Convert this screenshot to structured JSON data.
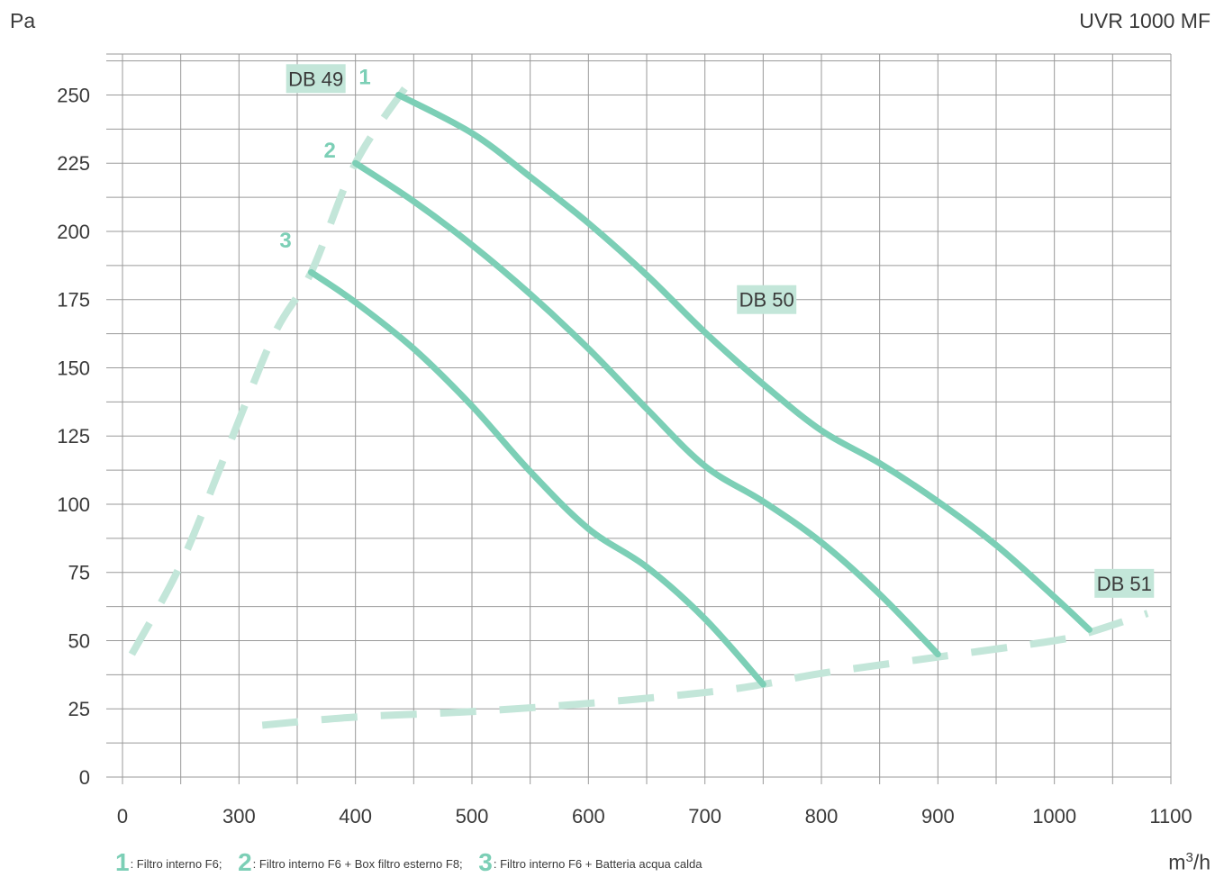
{
  "chart_data": {
    "type": "line",
    "title": "UVR 1000 MF",
    "ylabel": "Pa",
    "xlabel_unit": "m",
    "xlabel_unit_exp": "3",
    "xlabel_unit_suffix": "/h",
    "xlim": [
      200,
      1100
    ],
    "ylim": [
      0,
      265
    ],
    "x_ticks": [
      "0",
      "300",
      "400",
      "500",
      "600",
      "700",
      "800",
      "900",
      "1000",
      "1100"
    ],
    "x_tick_values": [
      200,
      300,
      400,
      500,
      600,
      700,
      800,
      900,
      1000,
      1100
    ],
    "y_ticks": [
      "0",
      "25",
      "50",
      "75",
      "100",
      "125",
      "150",
      "175",
      "200",
      "225",
      "250"
    ],
    "y_tick_values": [
      0,
      25,
      50,
      75,
      100,
      125,
      150,
      175,
      200,
      225,
      250
    ],
    "grid": true,
    "colors": {
      "curve": "#7ccfb6",
      "dashed": "#c3e6d9",
      "label_bg": "#c3e6d9",
      "grid": "#9a9a9a"
    },
    "series": [
      {
        "name": "1",
        "style": "solid",
        "x": [
          437,
          500,
          550,
          600,
          650,
          700,
          750,
          800,
          850,
          900,
          950,
          1000,
          1030
        ],
        "y": [
          250,
          236,
          220,
          203,
          184,
          163,
          144,
          127,
          115,
          101,
          85,
          66,
          54
        ]
      },
      {
        "name": "2",
        "style": "solid",
        "x": [
          400,
          450,
          500,
          550,
          600,
          650,
          700,
          750,
          800,
          850,
          900
        ],
        "y": [
          225,
          211,
          195,
          177,
          157,
          135,
          114,
          101,
          86,
          67,
          45
        ]
      },
      {
        "name": "3",
        "style": "solid",
        "x": [
          362,
          400,
          450,
          500,
          550,
          600,
          650,
          700,
          750
        ],
        "y": [
          185,
          174,
          157,
          136,
          112,
          91,
          77,
          58,
          34
        ]
      }
    ],
    "dashed_lines": [
      {
        "x": [
          208,
          250,
          290,
          330,
          362,
          400,
          445
        ],
        "y": [
          45,
          78,
          120,
          162,
          185,
          225,
          254
        ]
      },
      {
        "x": [
          320,
          400,
          500,
          600,
          700,
          750,
          800,
          900,
          1000,
          1030,
          1080
        ],
        "y": [
          19,
          22,
          24,
          27,
          31,
          34,
          38,
          44,
          50,
          53,
          60
        ]
      }
    ],
    "curve_labels": [
      {
        "text": "1",
        "x": 408,
        "y": 254
      },
      {
        "text": "2",
        "x": 378,
        "y": 227
      },
      {
        "text": "3",
        "x": 340,
        "y": 194
      }
    ],
    "annotations": [
      {
        "text": "DB 49",
        "x": 366,
        "y": 256
      },
      {
        "text": "DB 50",
        "x": 753,
        "y": 175
      },
      {
        "text": "DB 51",
        "x": 1060,
        "y": 71
      }
    ],
    "legend": [
      {
        "num": "1",
        "text": ": Filtro interno F6;"
      },
      {
        "num": "2",
        "text": ": Filtro interno F6 + Box filtro esterno F8;"
      },
      {
        "num": "3",
        "text": ": Filtro interno F6 + Batteria acqua calda"
      }
    ]
  }
}
